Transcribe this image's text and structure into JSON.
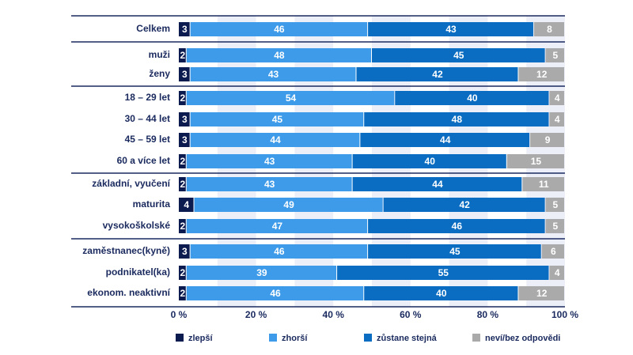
{
  "chart_data": {
    "type": "stacked_barh",
    "categories": [
      "Celkem",
      "muži",
      "ženy",
      "18 – 29 let",
      "30 – 44 let",
      "45 – 59 let",
      "60 a více let",
      "základní, vyučení",
      "maturita",
      "vysokoškolské",
      "zaměstnanec(kyně)",
      "podnikatel(ka)",
      "ekonom. neaktivní"
    ],
    "series": [
      {
        "name": "zlepší",
        "color": "#0b1a4f",
        "values": [
          3,
          2,
          3,
          2,
          3,
          3,
          2,
          2,
          4,
          2,
          3,
          2,
          2
        ]
      },
      {
        "name": "zhorší",
        "color": "#3d9be9",
        "values": [
          46,
          48,
          43,
          54,
          45,
          44,
          43,
          43,
          49,
          47,
          46,
          39,
          46
        ]
      },
      {
        "name": "zůstane stejná",
        "color": "#0a6dc2",
        "values": [
          43,
          45,
          42,
          40,
          48,
          44,
          40,
          44,
          42,
          46,
          45,
          55,
          40
        ]
      },
      {
        "name": "neví/bez odpovědi",
        "color": "#aaaaaa",
        "values": [
          8,
          5,
          12,
          4,
          4,
          9,
          15,
          11,
          5,
          5,
          6,
          4,
          12
        ]
      }
    ],
    "xlim": [
      0,
      100
    ],
    "xticks": [
      {
        "value": 0,
        "label": "0 %"
      },
      {
        "value": 20,
        "label": "20 %"
      },
      {
        "value": 40,
        "label": "40 %"
      },
      {
        "value": 60,
        "label": "60 %"
      },
      {
        "value": 80,
        "label": "80 %"
      },
      {
        "value": 100,
        "label": "100 %"
      }
    ]
  }
}
